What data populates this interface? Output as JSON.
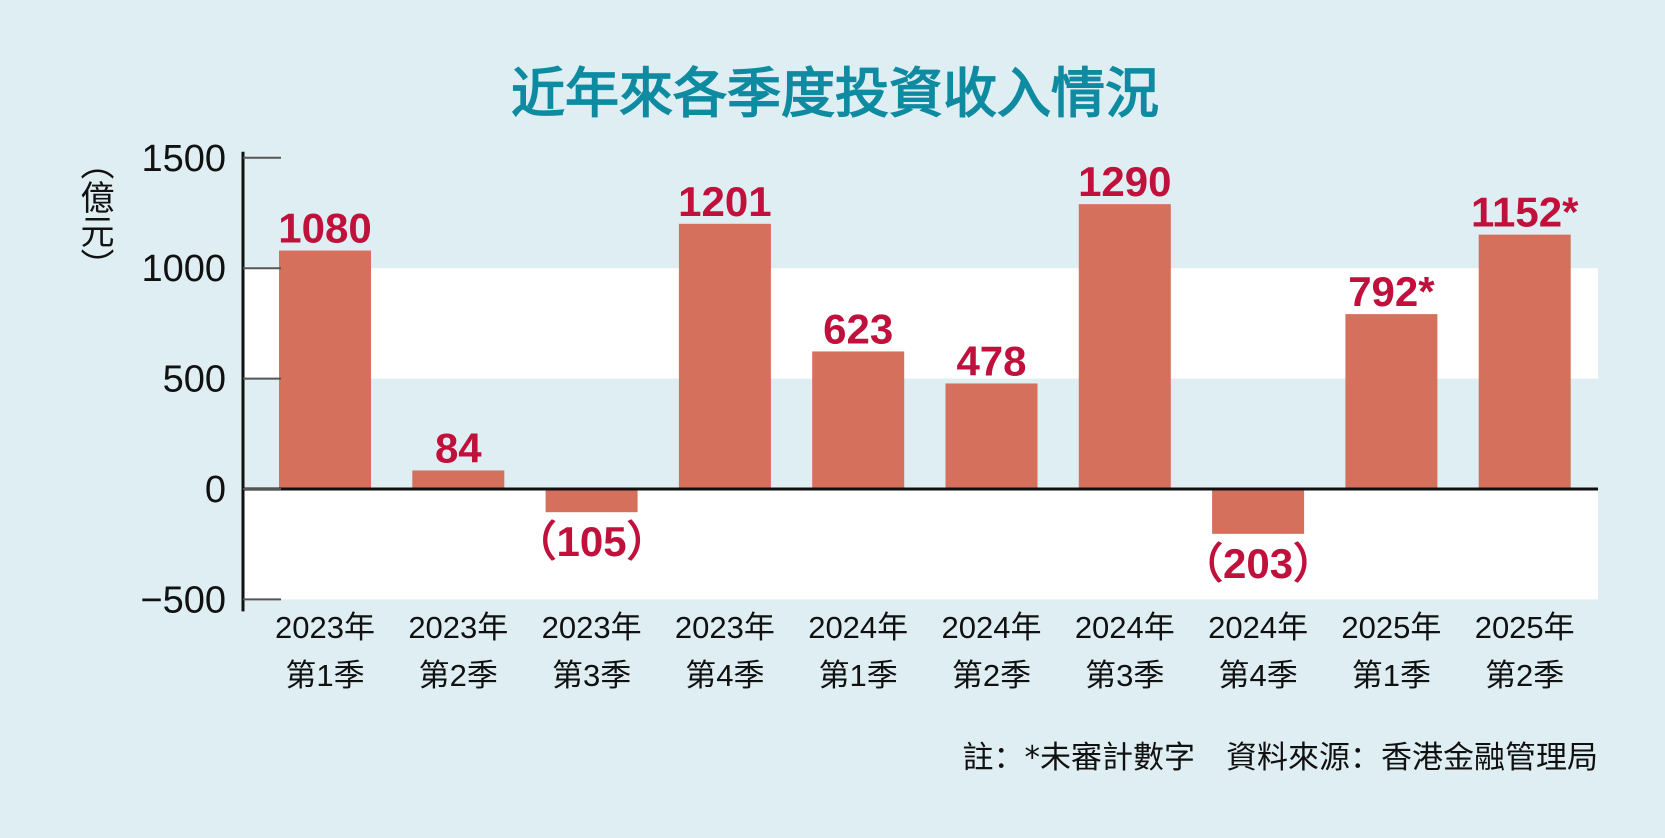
{
  "chart_data": {
    "type": "bar",
    "title": "近年來各季度投資收入情況",
    "ylabel": "（億元）",
    "xlabel": "",
    "categories": [
      [
        "2023年",
        "第1季"
      ],
      [
        "2023年",
        "第2季"
      ],
      [
        "2023年",
        "第3季"
      ],
      [
        "2023年",
        "第4季"
      ],
      [
        "2024年",
        "第1季"
      ],
      [
        "2024年",
        "第2季"
      ],
      [
        "2024年",
        "第3季"
      ],
      [
        "2024年",
        "第4季"
      ],
      [
        "2025年",
        "第1季"
      ],
      [
        "2025年",
        "第2季"
      ]
    ],
    "values": [
      1080,
      84,
      -105,
      1201,
      623,
      478,
      1290,
      -203,
      792,
      1152
    ],
    "data_labels": [
      "1080",
      "84",
      "（105）",
      "1201",
      "623",
      "478",
      "1290",
      "（203）",
      "792*",
      "1152*"
    ],
    "ylim": [
      -500,
      1500
    ],
    "yticks": [
      "1500",
      "1000",
      "500",
      "0",
      "−500"
    ],
    "ytick_values": [
      1500,
      1000,
      500,
      0,
      -500
    ],
    "grid": false,
    "bands": "alternating white bands 500–1000 and 0–−500",
    "note": "註：*未審計數字　資料來源：香港金融管理局",
    "colors": {
      "bar": "#d4705c",
      "label": "#c0103c",
      "title": "#0f8ba1",
      "background": "#dfeef2",
      "band": "#ffffff"
    }
  }
}
